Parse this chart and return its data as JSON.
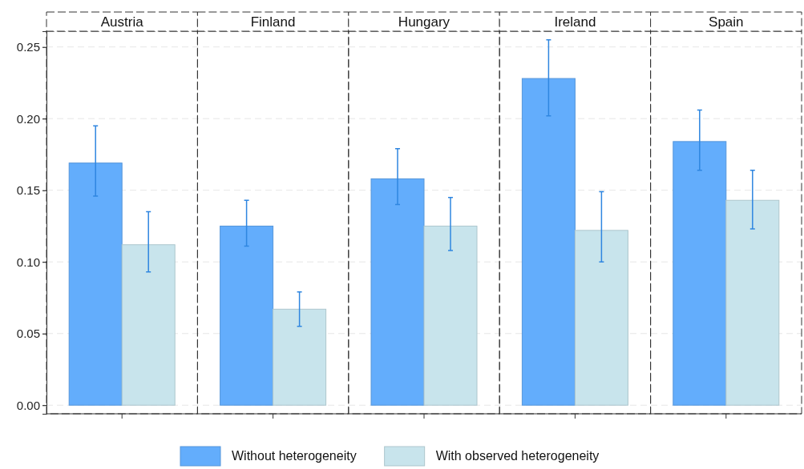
{
  "chart_data": {
    "type": "bar",
    "categories": [
      "Austria",
      "Finland",
      "Hungary",
      "Ireland",
      "Spain"
    ],
    "series": [
      {
        "name": "Without heterogeneity",
        "color": "#63adfc",
        "values": [
          0.169,
          0.125,
          0.158,
          0.228,
          0.184
        ],
        "errors": [
          [
            0.146,
            0.195
          ],
          [
            0.111,
            0.143
          ],
          [
            0.14,
            0.179
          ],
          [
            0.202,
            0.255
          ],
          [
            0.164,
            0.206
          ]
        ]
      },
      {
        "name": "With observed heterogeneity",
        "color": "#c8e4ec",
        "values": [
          0.112,
          0.067,
          0.125,
          0.122,
          0.143
        ],
        "errors": [
          [
            0.093,
            0.135
          ],
          [
            0.055,
            0.079
          ],
          [
            0.108,
            0.145
          ],
          [
            0.1,
            0.149
          ],
          [
            0.123,
            0.164
          ]
        ]
      }
    ],
    "ylim": [
      -0.006,
      0.261
    ],
    "yticks": [
      {
        "value": 0,
        "label": "0.00"
      },
      {
        "value": 0.05,
        "label": "0.05"
      },
      {
        "value": 0.1,
        "label": "0.10"
      },
      {
        "value": 0.15,
        "label": "0.15"
      },
      {
        "value": 0.2,
        "label": "0.20"
      },
      {
        "value": 0.25,
        "label": "0.25"
      }
    ],
    "grid": "y",
    "legend": "bottom"
  }
}
